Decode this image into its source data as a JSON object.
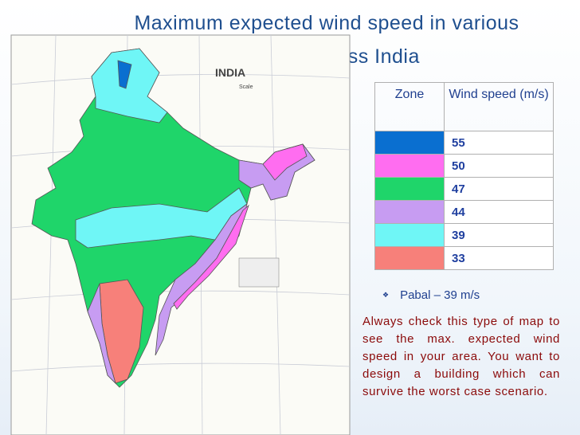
{
  "title": "Maximum expected wind speed in various regions across India",
  "map": {
    "title": "INDIA",
    "scale_label": "Scale"
  },
  "table": {
    "header": [
      "Zone",
      "Wind speed (m/s)"
    ],
    "rows": [
      {
        "color": "#0a6fd0",
        "speed": 55
      },
      {
        "color": "#ff6df0",
        "speed": 50
      },
      {
        "color": "#1fd56a",
        "speed": 47
      },
      {
        "color": "#c79cf2",
        "speed": 44
      },
      {
        "color": "#6ff6f6",
        "speed": 39
      },
      {
        "color": "#f7807a",
        "speed": 33
      }
    ]
  },
  "note": "Pabal – 39 m/s",
  "paragraph": "Always check this type of map to see the max. expected wind speed in your area. You want to design a building which can survive the worst case scenario."
}
